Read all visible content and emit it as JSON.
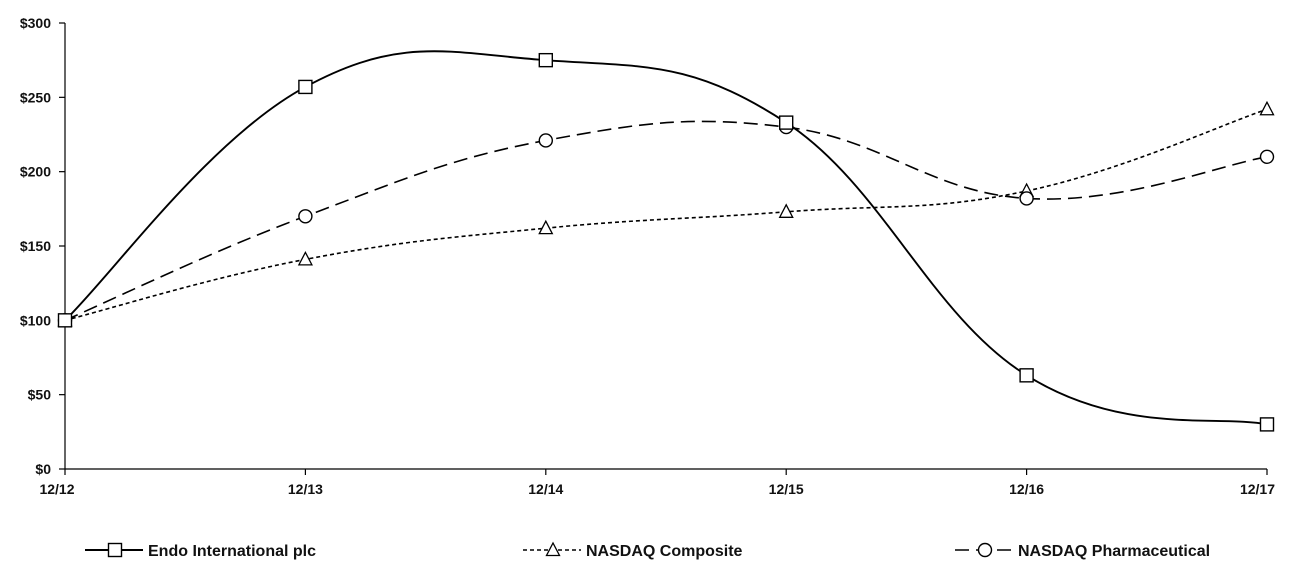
{
  "chart_data": {
    "type": "line",
    "categories": [
      "12/12",
      "12/13",
      "12/14",
      "12/15",
      "12/16",
      "12/17"
    ],
    "ylim": [
      0,
      300
    ],
    "yticks": [
      0,
      50,
      100,
      150,
      200,
      250,
      300
    ],
    "ytick_labels": [
      "$0",
      "$50",
      "$100",
      "$150",
      "$200",
      "$250",
      "$300"
    ],
    "grid": false,
    "legend_position": "bottom",
    "series": [
      {
        "name": "Endo International plc",
        "values": [
          100,
          257,
          275,
          233,
          63,
          30
        ],
        "marker": "square",
        "line_style": "solid",
        "color": "#000000"
      },
      {
        "name": "NASDAQ Composite",
        "values": [
          100,
          141,
          162,
          173,
          187,
          242
        ],
        "marker": "triangle",
        "line_style": "dotted",
        "color": "#000000"
      },
      {
        "name": "NASDAQ Pharmaceutical",
        "values": [
          100,
          170,
          221,
          230,
          182,
          210
        ],
        "marker": "circle",
        "line_style": "dashed",
        "color": "#000000"
      }
    ]
  }
}
